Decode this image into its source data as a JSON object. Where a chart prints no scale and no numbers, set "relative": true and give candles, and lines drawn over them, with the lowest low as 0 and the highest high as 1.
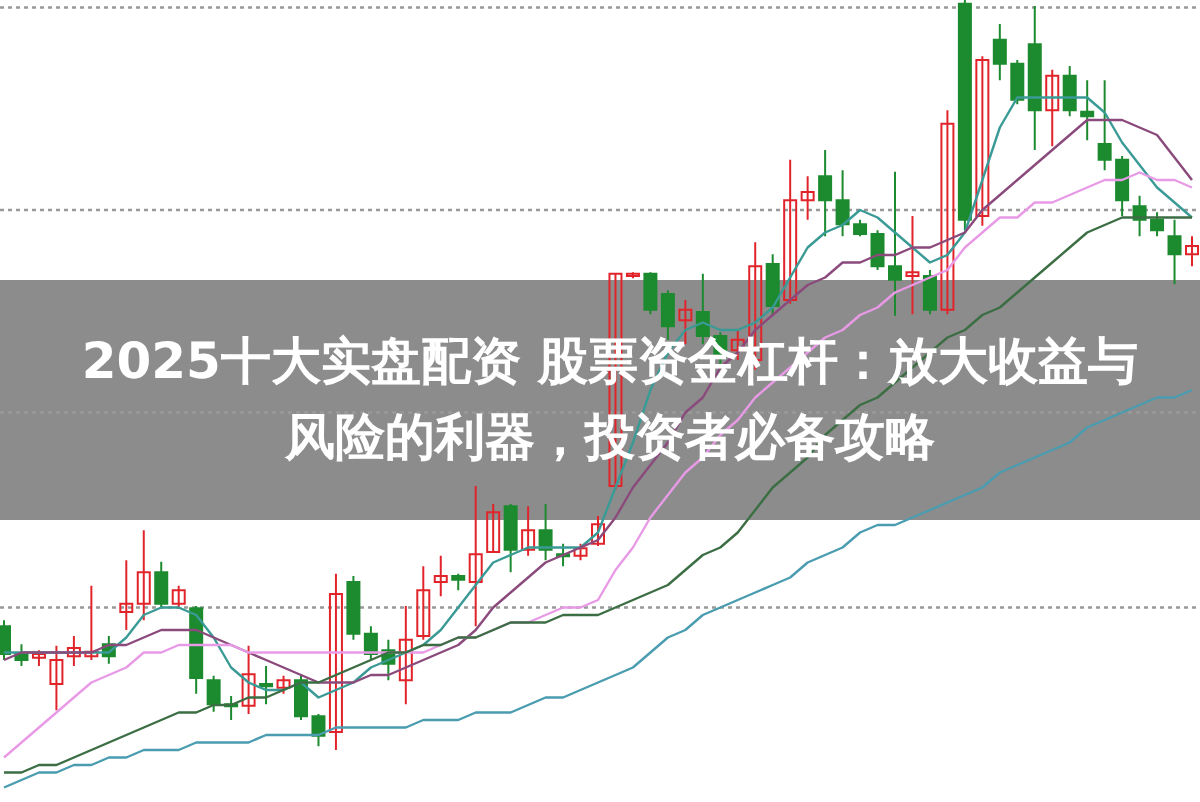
{
  "chart_data": {
    "type": "candlestick",
    "relative": true,
    "title": "2025十大实盘配资 股票资金杠杆：放大收益与风险的利器，投资者必备攻略",
    "categories": [
      null,
      null,
      null,
      null,
      null,
      null,
      null,
      null,
      null,
      null,
      null,
      null,
      null,
      null,
      null,
      null,
      null,
      null,
      null,
      null,
      null,
      null,
      null,
      null,
      null,
      null,
      null,
      null,
      null,
      null,
      null,
      null,
      null,
      null,
      null,
      null,
      null,
      null,
      null,
      null,
      null,
      null,
      null,
      null,
      null,
      null,
      null,
      null,
      null,
      null,
      null,
      null,
      null,
      null,
      null,
      null,
      null,
      null,
      null,
      null,
      null,
      null,
      null,
      null,
      null,
      null,
      null,
      null,
      null
    ],
    "ohlc": [
      [
        0.165,
        0.173,
        0.12,
        0.128
      ],
      [
        0.128,
        0.141,
        0.112,
        0.12
      ],
      [
        0.123,
        0.133,
        0.112,
        0.128
      ],
      [
        0.088,
        0.139,
        0.053,
        0.12
      ],
      [
        0.125,
        0.152,
        0.112,
        0.136
      ],
      [
        0.125,
        0.219,
        0.12,
        0.131
      ],
      [
        0.141,
        0.152,
        0.115,
        0.125
      ],
      [
        0.184,
        0.253,
        0.16,
        0.195
      ],
      [
        0.195,
        0.293,
        0.173,
        0.237
      ],
      [
        0.237,
        0.251,
        0.189,
        0.195
      ],
      [
        0.195,
        0.219,
        0.189,
        0.213
      ],
      [
        0.189,
        0.192,
        0.075,
        0.096
      ],
      [
        0.093,
        0.099,
        0.051,
        0.061
      ],
      [
        0.061,
        0.072,
        0.04,
        0.059
      ],
      [
        0.059,
        0.139,
        0.048,
        0.101
      ],
      [
        0.088,
        0.112,
        0.061,
        0.085
      ],
      [
        0.083,
        0.099,
        0.075,
        0.093
      ],
      [
        0.093,
        0.101,
        0.04,
        0.045
      ],
      [
        0.045,
        0.048,
        0.005,
        0.019
      ],
      [
        0.024,
        0.235,
        0,
        0.208
      ],
      [
        0.224,
        0.232,
        0.147,
        0.155
      ],
      [
        0.155,
        0.165,
        0.12,
        0.128
      ],
      [
        0.133,
        0.147,
        0.093,
        0.115
      ],
      [
        0.093,
        0.192,
        0.061,
        0.147
      ],
      [
        0.152,
        0.245,
        0.147,
        0.213
      ],
      [
        0.224,
        0.259,
        0.205,
        0.232
      ],
      [
        0.232,
        0.235,
        0.213,
        0.227
      ],
      [
        0.224,
        0.352,
        0.165,
        0.261
      ],
      [
        0.264,
        0.328,
        0.264,
        0.317
      ],
      [
        0.325,
        0.328,
        0.237,
        0.267
      ],
      [
        0.267,
        0.325,
        0.259,
        0.293
      ],
      [
        0.293,
        0.328,
        0.253,
        0.267
      ],
      [
        0.261,
        0.275,
        0.245,
        0.259
      ],
      [
        0.259,
        0.275,
        0.253,
        0.269
      ],
      [
        0.275,
        0.312,
        0.272,
        0.301
      ],
      [
        0.352,
        0.635,
        0.347,
        0.635
      ],
      [
        0.632,
        0.637,
        0.629,
        0.635
      ],
      [
        0.635,
        0.637,
        0.581,
        0.587
      ],
      [
        0.608,
        0.613,
        0.547,
        0.565
      ],
      [
        0.573,
        0.6,
        0.541,
        0.587
      ],
      [
        0.584,
        0.635,
        0.541,
        0.552
      ],
      [
        0.552,
        0.557,
        0.515,
        0.525
      ],
      [
        0.533,
        0.56,
        0.52,
        0.547
      ],
      [
        0.52,
        0.677,
        0.507,
        0.645
      ],
      [
        0.648,
        0.661,
        0.579,
        0.592
      ],
      [
        0.6,
        0.787,
        0.595,
        0.733
      ],
      [
        0.733,
        0.765,
        0.707,
        0.744
      ],
      [
        0.765,
        0.8,
        0.685,
        0.733
      ],
      [
        0.733,
        0.773,
        0.685,
        0.701
      ],
      [
        0.701,
        0.707,
        0.685,
        0.688
      ],
      [
        0.688,
        0.693,
        0.64,
        0.645
      ],
      [
        0.645,
        0.771,
        0.579,
        0.627
      ],
      [
        0.632,
        0.712,
        0.581,
        0.637
      ],
      [
        0.632,
        0.64,
        0.581,
        0.587
      ],
      [
        0.587,
        0.853,
        0.581,
        0.835
      ],
      [
        0.995,
        1,
        0.693,
        0.707
      ],
      [
        0.712,
        0.925,
        0.699,
        0.92
      ],
      [
        0.947,
        0.968,
        0.893,
        0.915
      ],
      [
        0.915,
        0.92,
        0.861,
        0.867
      ],
      [
        0.941,
        0.992,
        0.8,
        0.853
      ],
      [
        0.853,
        0.907,
        0.805,
        0.899
      ],
      [
        0.899,
        0.912,
        0.845,
        0.853
      ],
      [
        0.851,
        0.893,
        0.813,
        0.845
      ],
      [
        0.808,
        0.893,
        0.773,
        0.787
      ],
      [
        0.787,
        0.792,
        0.712,
        0.733
      ],
      [
        0.725,
        0.739,
        0.685,
        0.707
      ],
      [
        0.707,
        0.717,
        0.685,
        0.693
      ],
      [
        0.685,
        0.707,
        0.621,
        0.661
      ],
      [
        0.661,
        0.685,
        0.645,
        0.672
      ]
    ],
    "series": [
      {
        "type": "line",
        "color": "#3a9a96",
        "values": [
          0.13,
          0.13,
          0.13,
          0.13,
          0.13,
          0.13,
          0.13,
          0.15,
          0.18,
          0.19,
          0.19,
          0.18,
          0.15,
          0.11,
          0.09,
          0.08,
          0.08,
          0.09,
          0.07,
          0.08,
          0.09,
          0.11,
          0.12,
          0.13,
          0.14,
          0.16,
          0.19,
          0.22,
          0.25,
          0.26,
          0.27,
          0.27,
          0.27,
          0.27,
          0.29,
          0.35,
          0.41,
          0.48,
          0.53,
          0.56,
          0.57,
          0.56,
          0.56,
          0.57,
          0.59,
          0.63,
          0.67,
          0.69,
          0.7,
          0.72,
          0.71,
          0.69,
          0.67,
          0.65,
          0.66,
          0.69,
          0.76,
          0.83,
          0.87,
          0.87,
          0.87,
          0.87,
          0.87,
          0.85,
          0.81,
          0.78,
          0.75,
          0.73,
          0.71
        ]
      },
      {
        "type": "line",
        "color": "#8a4a7c",
        "values": [
          0.12,
          0.13,
          0.13,
          0.13,
          0.13,
          0.13,
          0.14,
          0.14,
          0.15,
          0.16,
          0.16,
          0.16,
          0.15,
          0.14,
          0.13,
          0.12,
          0.11,
          0.1,
          0.09,
          0.09,
          0.09,
          0.1,
          0.1,
          0.11,
          0.12,
          0.13,
          0.14,
          0.16,
          0.19,
          0.21,
          0.23,
          0.25,
          0.26,
          0.27,
          0.28,
          0.31,
          0.35,
          0.38,
          0.41,
          0.45,
          0.47,
          0.51,
          0.53,
          0.56,
          0.58,
          0.6,
          0.62,
          0.63,
          0.65,
          0.65,
          0.66,
          0.66,
          0.67,
          0.67,
          0.68,
          0.69,
          0.72,
          0.74,
          0.76,
          0.78,
          0.8,
          0.82,
          0.84,
          0.84,
          0.84,
          0.83,
          0.82,
          0.79,
          0.76
        ]
      },
      {
        "type": "line",
        "color": "#e89ae6",
        "values": [
          -0.01,
          0.01,
          0.03,
          0.05,
          0.07,
          0.09,
          0.1,
          0.11,
          0.13,
          0.13,
          0.14,
          0.14,
          0.14,
          0.14,
          0.13,
          0.13,
          0.13,
          0.13,
          0.13,
          0.13,
          0.13,
          0.13,
          0.13,
          0.13,
          0.13,
          0.14,
          0.15,
          0.15,
          0.16,
          0.17,
          0.17,
          0.18,
          0.19,
          0.19,
          0.2,
          0.24,
          0.27,
          0.31,
          0.34,
          0.37,
          0.39,
          0.42,
          0.44,
          0.47,
          0.49,
          0.51,
          0.53,
          0.55,
          0.56,
          0.58,
          0.59,
          0.61,
          0.62,
          0.63,
          0.64,
          0.67,
          0.69,
          0.71,
          0.71,
          0.73,
          0.73,
          0.74,
          0.75,
          0.76,
          0.76,
          0.77,
          0.76,
          0.76,
          0.75
        ]
      },
      {
        "type": "line",
        "color": "#3c6e44",
        "values": [
          -0.03,
          -0.03,
          -0.02,
          -0.02,
          -0.01,
          0,
          0.01,
          0.02,
          0.03,
          0.04,
          0.05,
          0.05,
          0.06,
          0.06,
          0.07,
          0.07,
          0.08,
          0.09,
          0.09,
          0.1,
          0.11,
          0.12,
          0.13,
          0.13,
          0.14,
          0.14,
          0.15,
          0.15,
          0.16,
          0.17,
          0.17,
          0.17,
          0.18,
          0.18,
          0.18,
          0.19,
          0.2,
          0.21,
          0.22,
          0.24,
          0.26,
          0.27,
          0.29,
          0.32,
          0.35,
          0.37,
          0.39,
          0.42,
          0.44,
          0.46,
          0.47,
          0.49,
          0.51,
          0.53,
          0.55,
          0.56,
          0.58,
          0.59,
          0.61,
          0.63,
          0.65,
          0.67,
          0.69,
          0.7,
          0.71,
          0.71,
          0.71,
          0.71,
          0.71
        ]
      },
      {
        "type": "line",
        "color": "#4a9cb0",
        "values": [
          -0.05,
          -0.04,
          -0.03,
          -0.03,
          -0.02,
          -0.02,
          -0.01,
          -0.01,
          0,
          0,
          0,
          0.01,
          0.01,
          0.01,
          0.01,
          0.02,
          0.02,
          0.02,
          0.02,
          0.03,
          0.03,
          0.03,
          0.03,
          0.03,
          0.04,
          0.04,
          0.04,
          0.05,
          0.05,
          0.05,
          0.06,
          0.07,
          0.07,
          0.08,
          0.09,
          0.1,
          0.11,
          0.13,
          0.15,
          0.16,
          0.18,
          0.19,
          0.2,
          0.21,
          0.22,
          0.23,
          0.25,
          0.26,
          0.27,
          0.29,
          0.3,
          0.3,
          0.31,
          0.32,
          0.33,
          0.34,
          0.35,
          0.37,
          0.38,
          0.39,
          0.4,
          0.41,
          0.43,
          0.44,
          0.45,
          0.46,
          0.47,
          0.47,
          0.48
        ]
      }
    ],
    "ref_lines": [
      {
        "axis": "y",
        "value": 0.99,
        "color": "#999999",
        "line_style": "dotted"
      },
      {
        "axis": "y",
        "value": 0.72,
        "color": "#999999",
        "line_style": "dotted"
      },
      {
        "axis": "y",
        "value": 0.45,
        "color": "#999999",
        "line_style": "dotted"
      },
      {
        "axis": "y",
        "value": 0.19,
        "color": "#999999",
        "line_style": "dotted"
      }
    ]
  }
}
